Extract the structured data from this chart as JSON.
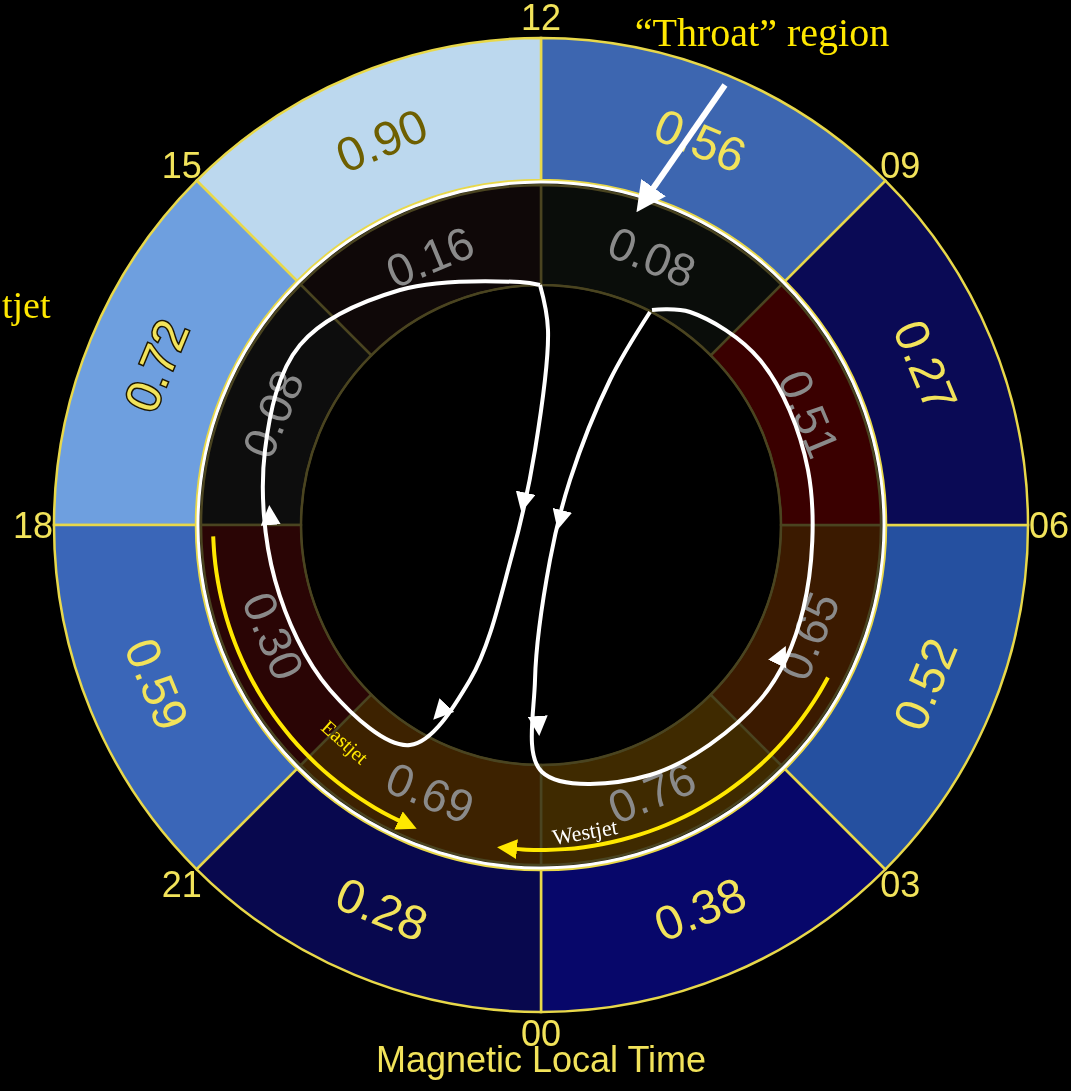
{
  "chart_data": {
    "type": "other",
    "xlabel": "Magnetic Local Time",
    "categories": [
      "00",
      "03",
      "06",
      "09",
      "12",
      "15",
      "18",
      "21"
    ],
    "series": [
      {
        "values": [
          0.38,
          0.52,
          0.27,
          0.56,
          0.9,
          0.72,
          0.59,
          0.28
        ],
        "value_labels": [
          "0.38",
          "0.52",
          "0.27",
          "0.56",
          "0.90",
          "0.72",
          "0.59",
          "0.28"
        ],
        "colors": [
          "#07076a",
          "#2550a0",
          "#0a0a55",
          "#3d66b0",
          "#bcd8ee",
          "#6e9fdf",
          "#3a66b8",
          "#08084e"
        ]
      },
      {
        "values": [
          0.76,
          0.65,
          0.51,
          0.08,
          0.16,
          0.08,
          0.3,
          0.69
        ],
        "value_labels": [
          "0.76",
          "0.65",
          "0.51",
          "0.08",
          "0.16",
          "0.08",
          "0.30",
          "0.69"
        ],
        "colors": [
          "#3f2a00",
          "#3b1a00",
          "#3a0000",
          "#0a0d0a",
          "#0f0808",
          "#0d0d0d",
          "#2a0505",
          "#3d2200"
        ]
      }
    ],
    "annotations": [
      "“Throat” region",
      "tjet",
      "Eastjet",
      "Westjet"
    ]
  }
}
